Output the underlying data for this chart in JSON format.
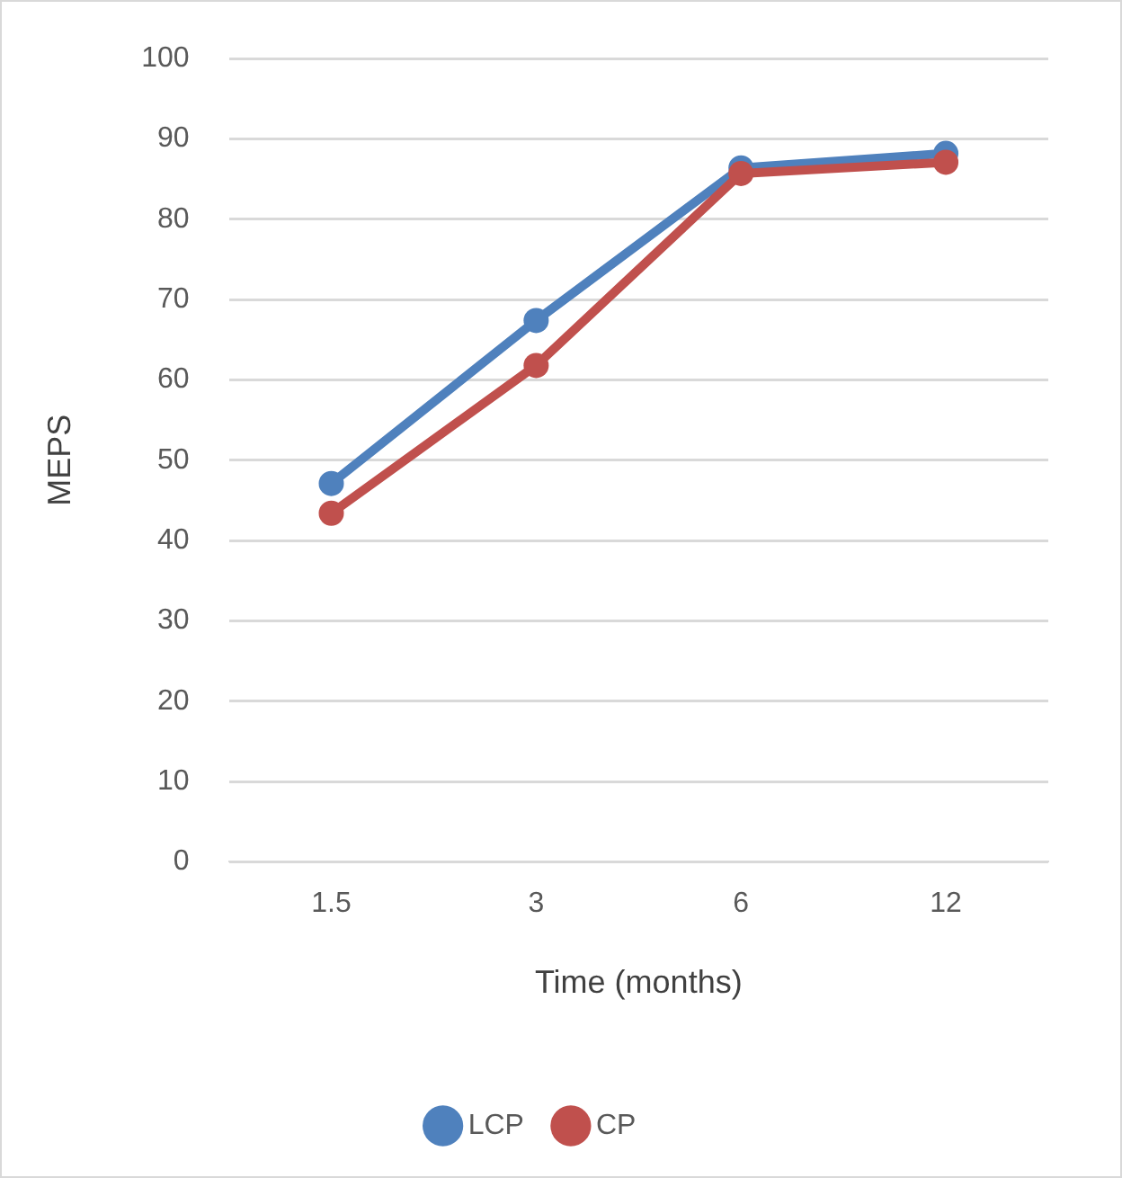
{
  "chart_data": {
    "type": "line",
    "xlabel": "Time (months)",
    "ylabel": "MEPS",
    "categories": [
      "1.5",
      "3",
      "6",
      "12"
    ],
    "series": [
      {
        "name": "LCP",
        "color": "#4f81bd",
        "values": [
          47.1,
          67.4,
          86.4,
          88.2
        ]
      },
      {
        "name": "CP",
        "color": "#c0504d",
        "values": [
          43.4,
          61.8,
          85.7,
          87.1
        ]
      }
    ],
    "ylim": [
      0,
      100
    ],
    "yticks": [
      0,
      10,
      20,
      30,
      40,
      50,
      60,
      70,
      80,
      90,
      100
    ],
    "grid": "y",
    "legend": "bottom",
    "marker": "circle",
    "line_style": "solid"
  }
}
